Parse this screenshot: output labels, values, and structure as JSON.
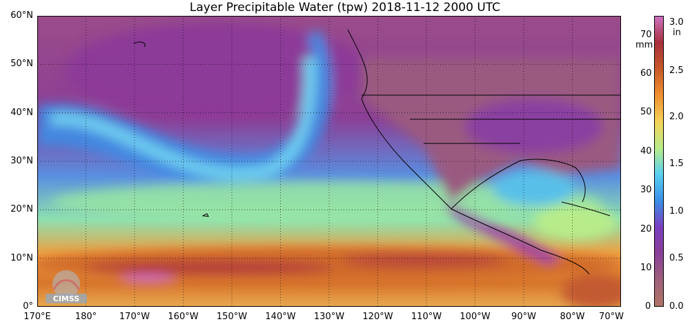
{
  "title": "Layer Precipitable Water (tpw)  2018-11-12 2000 UTC",
  "lat_labels": [
    "60°N",
    "50°N",
    "40°N",
    "30°N",
    "20°N",
    "10°N",
    "0°"
  ],
  "lon_labels": [
    "170°E",
    "180°",
    "170°W",
    "160°W",
    "150°W",
    "140°W",
    "130°W",
    "120°W",
    "110°W",
    "100°W",
    "90°W",
    "80°W",
    "70°W"
  ],
  "colorbar": {
    "mm_unit": "mm",
    "in_unit": "in",
    "mm_ticks": [
      "70",
      "60",
      "50",
      "40",
      "30",
      "20",
      "10",
      "0"
    ],
    "in_ticks": [
      "3.0",
      "2.5",
      "2.0",
      "1.5",
      "1.0",
      "0.5",
      "0.0"
    ],
    "colors": [
      "#b07565",
      "#a0607c",
      "#8a3f98",
      "#7a3fbf",
      "#3a8fe8",
      "#5ad0f0",
      "#b8ec8a",
      "#f5d35a",
      "#f09030",
      "#c85a28",
      "#a8303c",
      "#cc70c0"
    ]
  },
  "logo_text": "CIMSS"
}
